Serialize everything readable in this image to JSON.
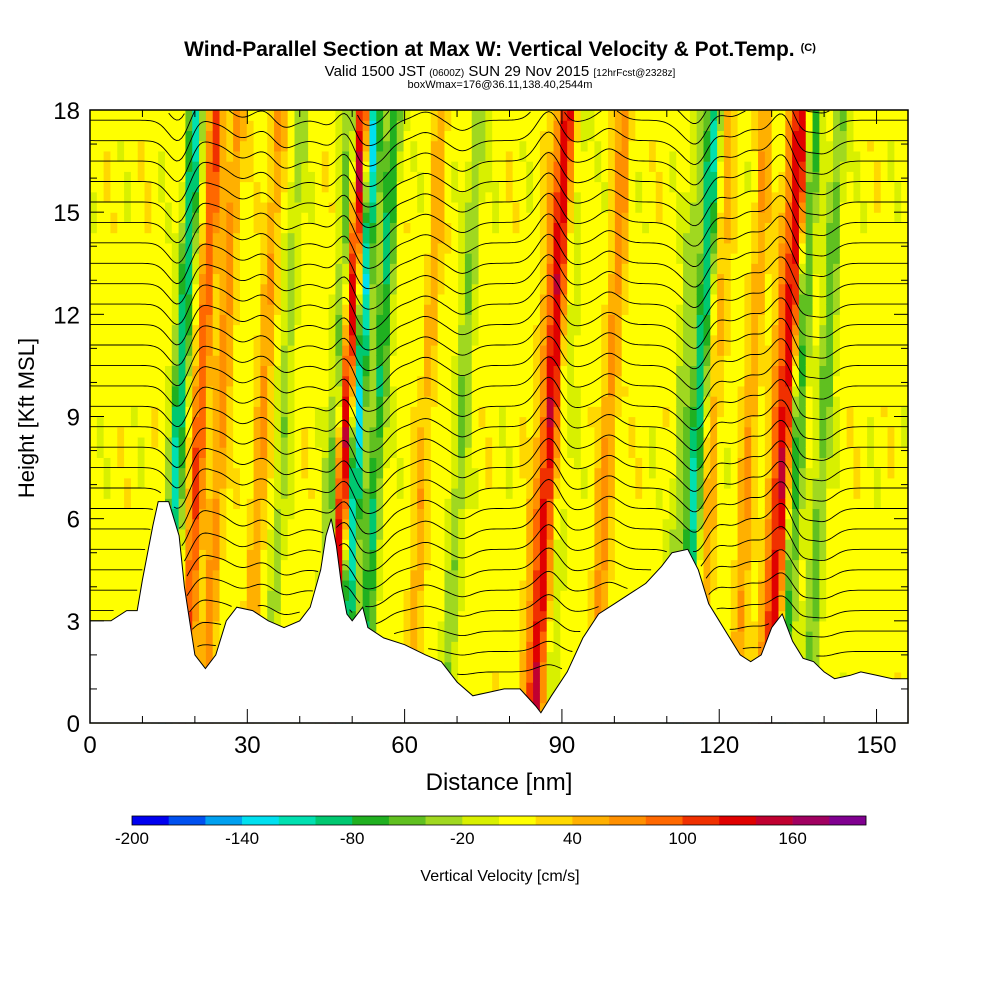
{
  "header": {
    "title": "Wind-Parallel Section at Max W: Vertical Velocity & Pot.Temp.",
    "copyright": "(C)",
    "valid_prefix": "Valid 1500 JST",
    "valid_z": "(0600Z)",
    "valid_date": "SUN 29 Nov 2015",
    "forecast": "[12hrFcst@2328z]",
    "box_info": "boxWmax=176@36.11,138.40,2544m"
  },
  "chart_data": {
    "type": "heatmap",
    "xlabel": "Distance [nm]",
    "ylabel": "Height [Kft MSL]",
    "xlim": [
      0,
      156
    ],
    "ylim": [
      0,
      18
    ],
    "x_ticks": [
      0,
      30,
      60,
      90,
      120,
      150
    ],
    "y_ticks": [
      0,
      3,
      6,
      9,
      12,
      15,
      18
    ],
    "colorbar": {
      "label": "Vertical Velocity [cm/s]",
      "min": -200,
      "max": 200,
      "step": 20,
      "tick_values": [
        -200,
        -140,
        -80,
        -20,
        40,
        100,
        160
      ],
      "colors": [
        "#0000f0",
        "#0050f0",
        "#00a0f0",
        "#00e0f0",
        "#00e0b0",
        "#00c870",
        "#20b020",
        "#60c020",
        "#a0d820",
        "#d8f000",
        "#ffff00",
        "#ffd800",
        "#ffb000",
        "#ff9000",
        "#ff6800",
        "#f03000",
        "#e00000",
        "#c00030",
        "#a00060",
        "#800090"
      ]
    },
    "w_features": [
      {
        "x": 17,
        "w": -110
      },
      {
        "x": 21,
        "w": 90
      },
      {
        "x": 25,
        "w": 60
      },
      {
        "x": 33,
        "w": 50
      },
      {
        "x": 37,
        "w": -40
      },
      {
        "x": 47,
        "w": -70
      },
      {
        "x": 49,
        "w": 160
      },
      {
        "x": 51,
        "w": -150
      },
      {
        "x": 55,
        "w": -90
      },
      {
        "x": 64,
        "w": 40
      },
      {
        "x": 71,
        "w": -50
      },
      {
        "x": 86,
        "w": 40
      },
      {
        "x": 88,
        "w": 120
      },
      {
        "x": 91,
        "w": -20
      },
      {
        "x": 99,
        "w": 60
      },
      {
        "x": 113,
        "w": -40
      },
      {
        "x": 116,
        "w": -110
      },
      {
        "x": 119,
        "w": 40
      },
      {
        "x": 126,
        "w": 50
      },
      {
        "x": 131,
        "w": 60
      },
      {
        "x": 133,
        "w": 120
      },
      {
        "x": 135,
        "w": -90
      },
      {
        "x": 140,
        "w": -60
      }
    ],
    "terrain": [
      [
        0,
        3.0
      ],
      [
        4,
        3.0
      ],
      [
        7,
        3.3
      ],
      [
        9,
        3.3
      ],
      [
        10,
        4.2
      ],
      [
        12,
        5.8
      ],
      [
        13,
        6.5
      ],
      [
        15,
        6.5
      ],
      [
        17,
        5.5
      ],
      [
        18,
        4.0
      ],
      [
        19,
        3.0
      ],
      [
        20,
        2.0
      ],
      [
        22,
        1.6
      ],
      [
        24,
        2.0
      ],
      [
        26,
        3.0
      ],
      [
        28,
        3.4
      ],
      [
        31,
        3.3
      ],
      [
        34,
        3.0
      ],
      [
        37,
        2.8
      ],
      [
        40,
        3.0
      ],
      [
        42,
        3.4
      ],
      [
        44,
        4.5
      ],
      [
        45,
        5.5
      ],
      [
        46,
        6.0
      ],
      [
        47,
        5.2
      ],
      [
        48,
        4.0
      ],
      [
        49,
        3.2
      ],
      [
        50,
        3.0
      ],
      [
        52,
        3.4
      ],
      [
        53,
        2.8
      ],
      [
        56,
        2.5
      ],
      [
        60,
        2.3
      ],
      [
        64,
        2.0
      ],
      [
        67,
        1.8
      ],
      [
        70,
        1.2
      ],
      [
        73,
        0.8
      ],
      [
        76,
        0.9
      ],
      [
        79,
        1.0
      ],
      [
        82,
        1.0
      ],
      [
        85,
        0.5
      ],
      [
        86,
        0.3
      ],
      [
        88,
        0.8
      ],
      [
        91,
        1.5
      ],
      [
        94,
        2.5
      ],
      [
        97,
        3.2
      ],
      [
        100,
        3.5
      ],
      [
        103,
        3.8
      ],
      [
        106,
        4.1
      ],
      [
        109,
        4.6
      ],
      [
        111,
        5.0
      ],
      [
        114,
        5.1
      ],
      [
        116,
        4.5
      ],
      [
        118,
        3.5
      ],
      [
        120,
        3.0
      ],
      [
        122,
        2.5
      ],
      [
        124,
        2.0
      ],
      [
        126,
        1.8
      ],
      [
        128,
        2.0
      ],
      [
        130,
        2.8
      ],
      [
        132,
        3.2
      ],
      [
        134,
        2.4
      ],
      [
        136,
        1.9
      ],
      [
        138,
        1.8
      ],
      [
        140,
        1.5
      ],
      [
        142,
        1.3
      ],
      [
        145,
        1.4
      ],
      [
        147,
        1.5
      ],
      [
        150,
        1.4
      ],
      [
        153,
        1.3
      ],
      [
        156,
        1.3
      ]
    ],
    "grid": false
  }
}
